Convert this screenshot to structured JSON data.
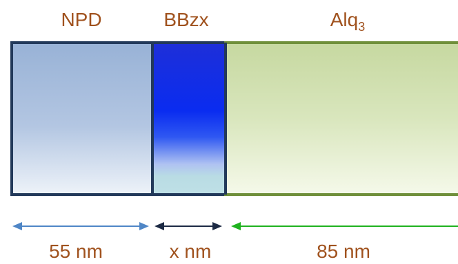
{
  "layers": [
    {
      "name": "NPD"
    },
    {
      "name": "BBzx"
    },
    {
      "name": "Alq",
      "subscript": "3"
    }
  ],
  "thicknesses": [
    {
      "label": "55 nm"
    },
    {
      "label": "x nm"
    },
    {
      "label": "85 nm"
    }
  ],
  "colors": {
    "label_text": "#A0521E",
    "npd_border": "#22395A",
    "npd_fill_top": "#98B2D6",
    "npd_fill_bottom": "#EEF3F9",
    "bbzx_border": "#22395A",
    "bbzx_fill_top": "#1E2FD8",
    "bbzx_fill_bottom": "#B9DCE4",
    "alq3_border": "#6F8F3A",
    "alq3_fill_top": "#C6D8A0",
    "alq3_fill_bottom": "#F5F9EA",
    "arrow_npd": "#4F86C6",
    "arrow_bbzx": "#1C2A44",
    "arrow_alq3": "#1FB21F"
  }
}
